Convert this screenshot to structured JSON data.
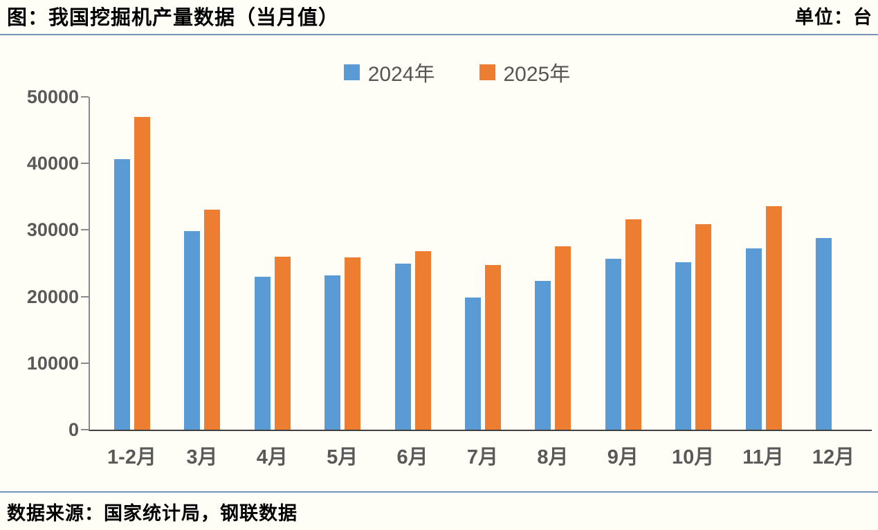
{
  "header": {
    "title": "图：我国挖掘机产量数据（当月值）",
    "unit": "单位：台"
  },
  "footer": {
    "source": "数据来源：国家统计局，钢联数据"
  },
  "chart_data": {
    "type": "bar",
    "title": "图：我国挖掘机产量数据（当月值）",
    "unit_label": "单位：台",
    "categories": [
      "1-2月",
      "3月",
      "4月",
      "5月",
      "6月",
      "7月",
      "8月",
      "9月",
      "10月",
      "11月",
      "12月"
    ],
    "series": [
      {
        "name": "2024年",
        "color": "#5B9BD5",
        "values": [
          40600,
          29800,
          23000,
          23200,
          24900,
          19900,
          22400,
          25700,
          25200,
          27200,
          28800
        ]
      },
      {
        "name": "2025年",
        "color": "#ED7D31",
        "values": [
          47000,
          33100,
          26000,
          25900,
          26800,
          24700,
          27500,
          31600,
          30900,
          33600,
          null
        ]
      }
    ],
    "ylim": [
      0,
      50000
    ],
    "ytick_step": 10000,
    "ytick_labels": [
      "0",
      "10000",
      "20000",
      "30000",
      "40000",
      "50000"
    ],
    "grid": false,
    "legend_position": "top-center",
    "source": "数据来源：国家统计局，钢联数据"
  }
}
